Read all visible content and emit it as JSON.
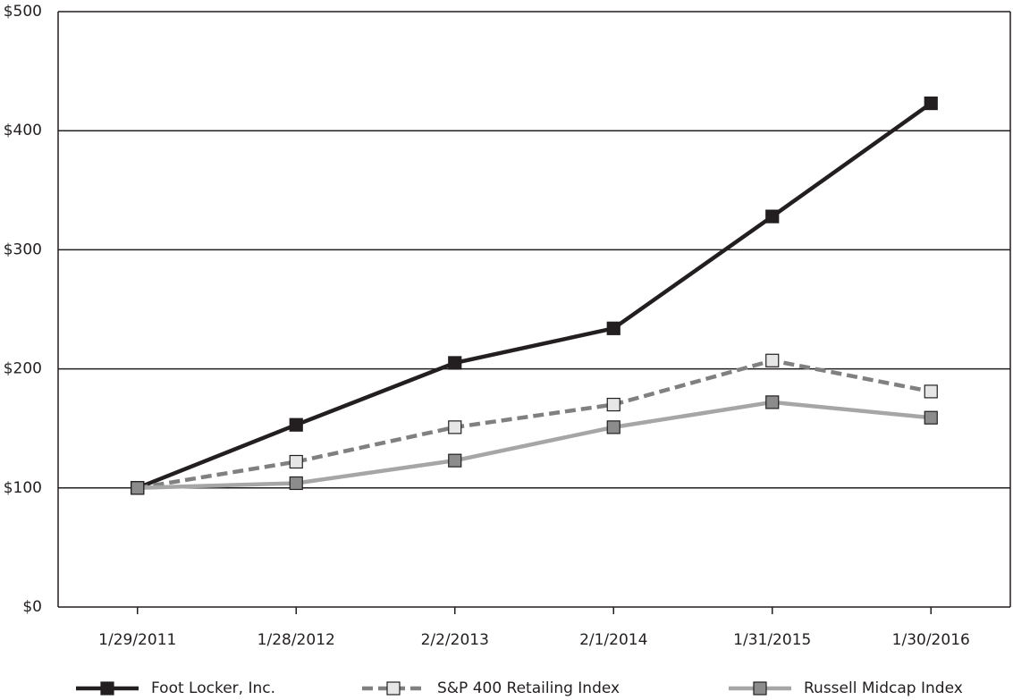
{
  "chart_data": {
    "type": "line",
    "categories": [
      "1/29/2011",
      "1/28/2012",
      "2/2/2013",
      "2/1/2014",
      "1/31/2015",
      "1/30/2016"
    ],
    "series": [
      {
        "name": "Foot Locker, Inc.",
        "color": "#231f20",
        "marker_color": "#231f20",
        "dashed": false,
        "values": [
          100,
          153,
          205,
          234,
          328,
          423
        ]
      },
      {
        "name": "S&P 400 Retailing Index",
        "color": "#808080",
        "marker_color": "#e6e6e6",
        "dashed": true,
        "values": [
          100,
          122,
          151,
          170,
          207,
          181
        ]
      },
      {
        "name": "Russell Midcap Index",
        "color": "#a6a6a6",
        "marker_color": "#8c8c8c",
        "dashed": false,
        "values": [
          100,
          104,
          123,
          151,
          172,
          159
        ]
      }
    ],
    "ylim": [
      0,
      500
    ],
    "yticks": [
      {
        "value": 0,
        "label": "$0"
      },
      {
        "value": 100,
        "label": "$100"
      },
      {
        "value": 200,
        "label": "$200"
      },
      {
        "value": 300,
        "label": "$300"
      },
      {
        "value": 400,
        "label": "$400"
      },
      {
        "value": 500,
        "label": "$500"
      }
    ],
    "grid": true,
    "legend": "bottom"
  }
}
